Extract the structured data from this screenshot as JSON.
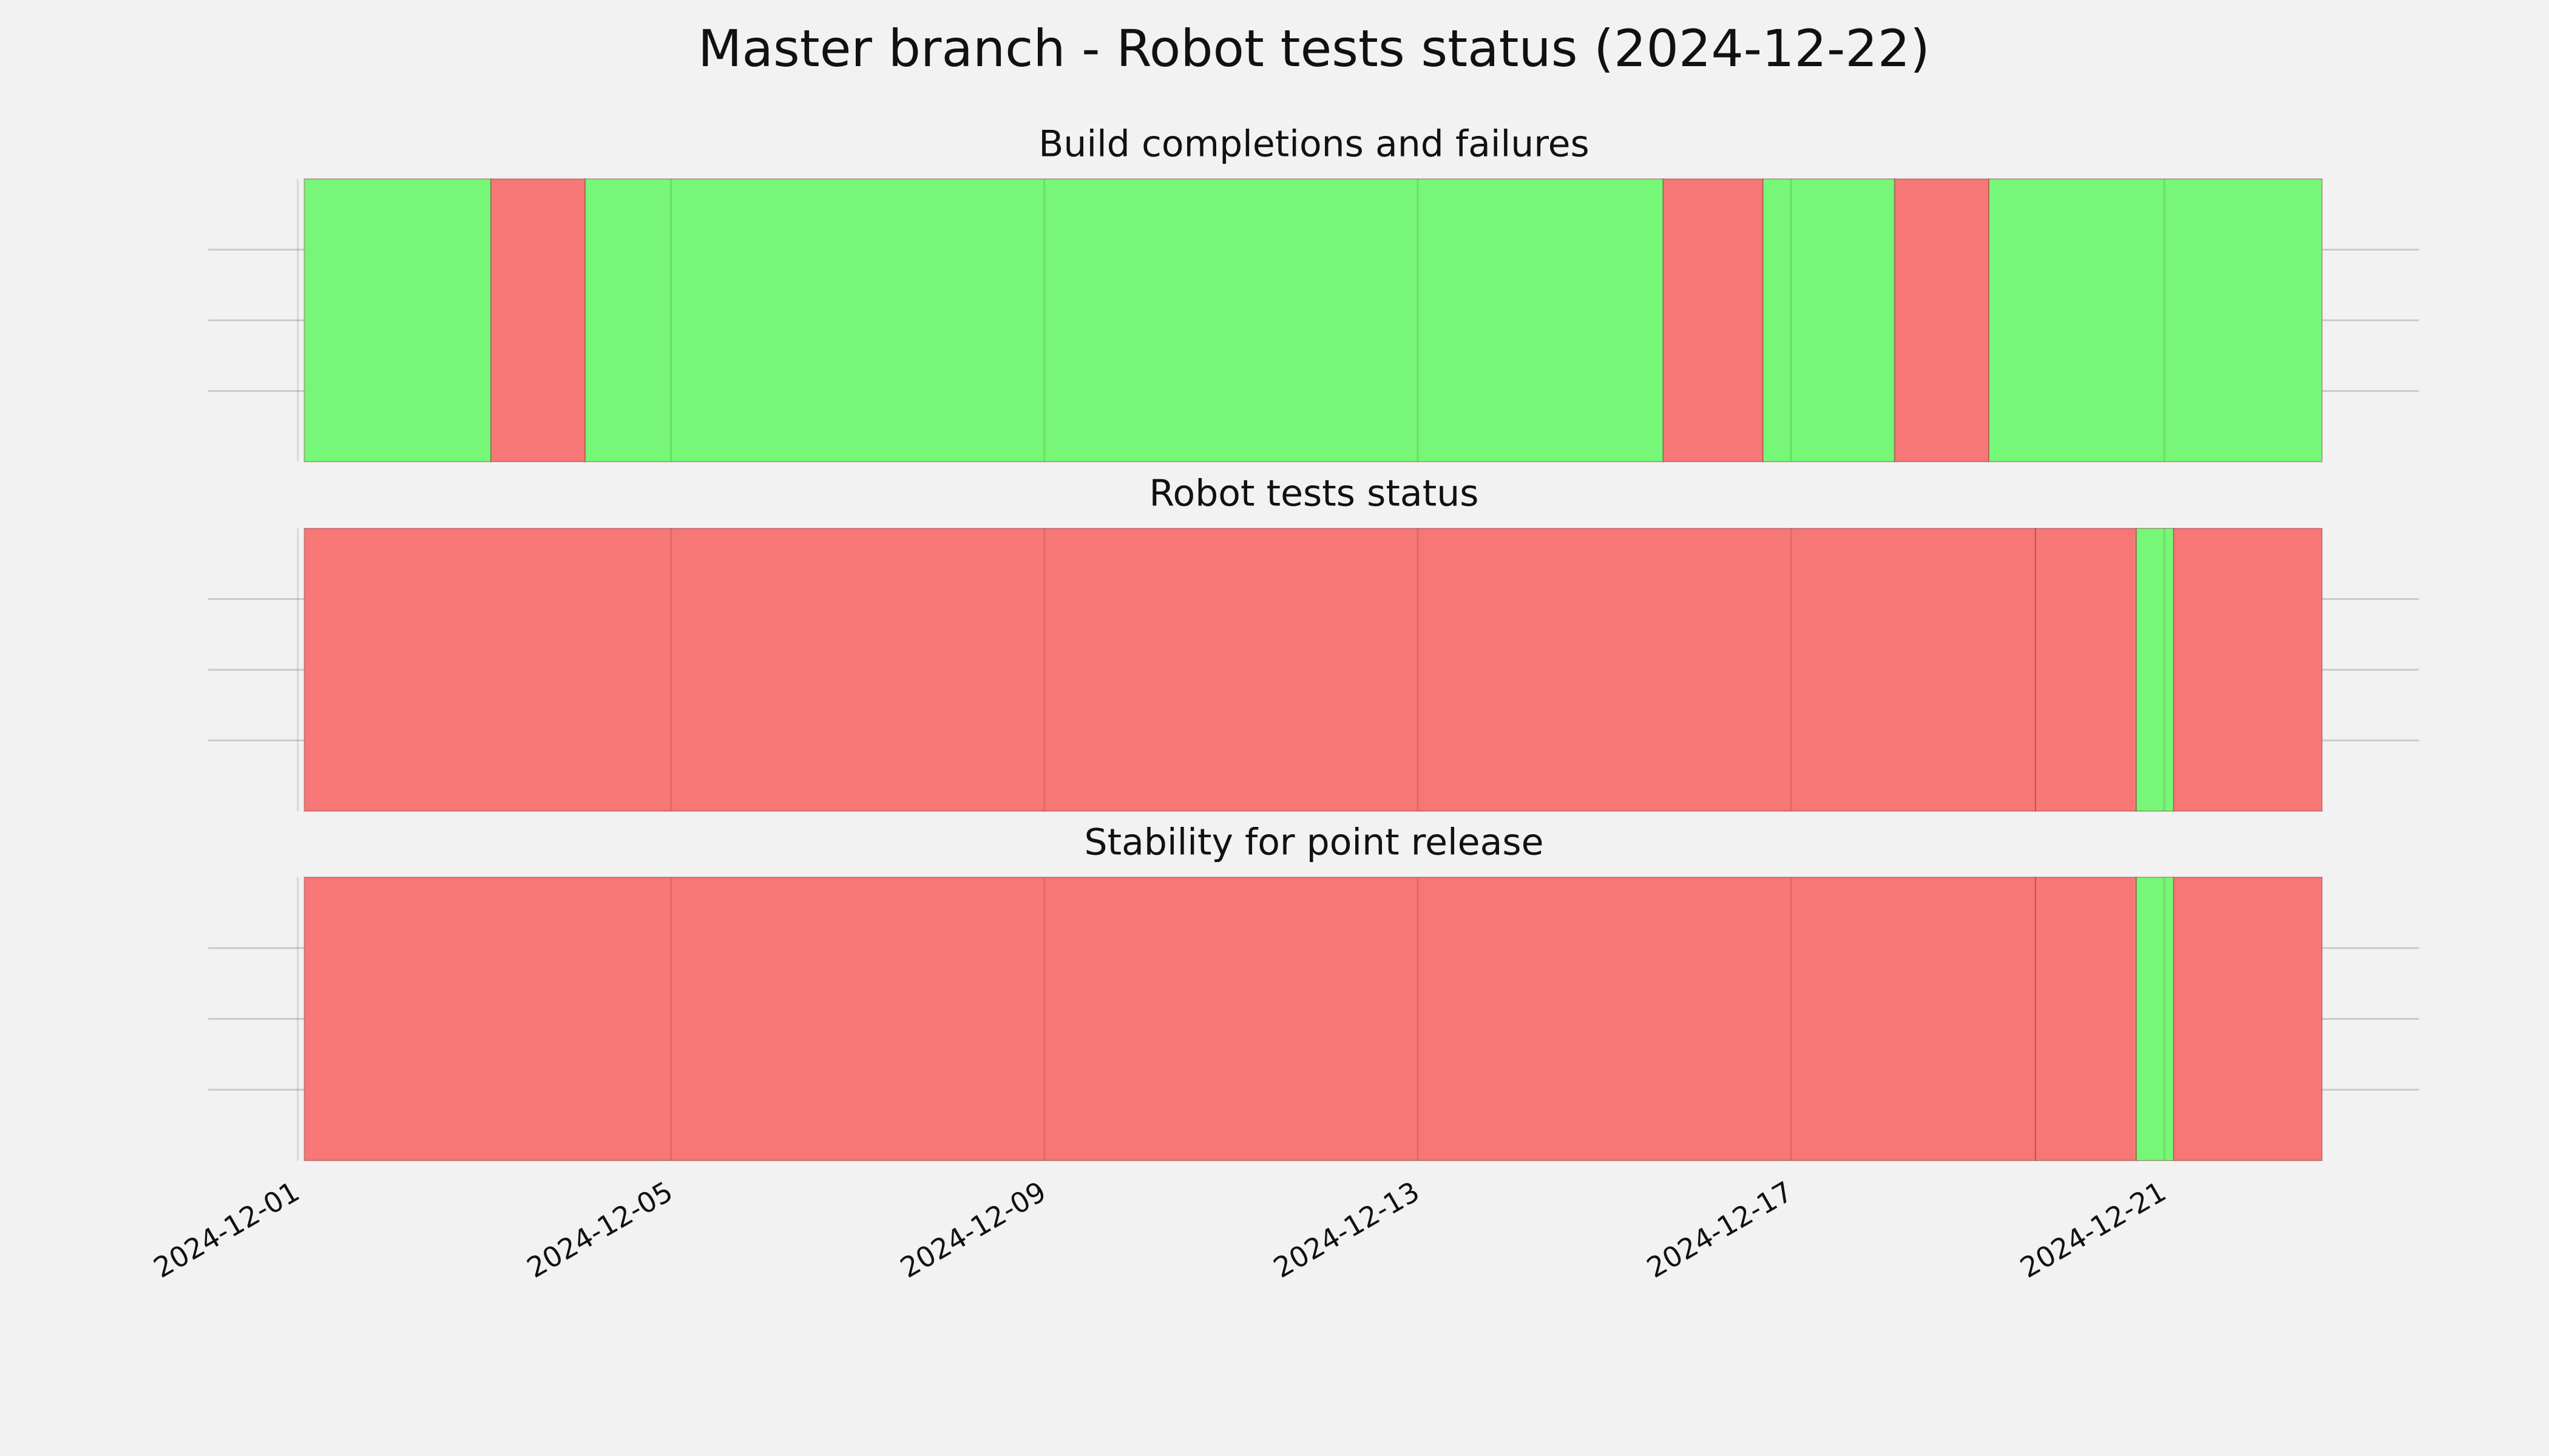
{
  "title": "Master branch - Robot tests status (2024-12-22)",
  "xaxis": {
    "xlim": [
      -0.96,
      22.73
    ],
    "xticks": [
      {
        "value": 0,
        "label": "2024-12-01"
      },
      {
        "value": 4,
        "label": "2024-12-05"
      },
      {
        "value": 8,
        "label": "2024-12-09"
      },
      {
        "value": 12,
        "label": "2024-12-13"
      },
      {
        "value": 16,
        "label": "2024-12-17"
      },
      {
        "value": 20,
        "label": "2024-12-21"
      }
    ]
  },
  "chart_data": [
    {
      "type": "timeline",
      "title": "Build completions and failures",
      "ylim": [
        0,
        1
      ],
      "yticks": [
        0.25,
        0.5,
        0.75
      ],
      "grid": true,
      "starts": [
        0.07,
        2.07,
        3.08,
        14.63,
        15.7,
        17.11,
        18.12
      ],
      "ends": [
        2.07,
        3.08,
        14.63,
        15.7,
        17.11,
        18.12,
        21.69
      ],
      "colors": [
        "#77f777",
        "#f77777",
        "#77f777",
        "#f77777",
        "#77f777",
        "#f77777",
        "#77f777"
      ]
    },
    {
      "type": "timeline",
      "title": "Robot tests status",
      "ylim": [
        0,
        1
      ],
      "yticks": [
        0.25,
        0.5,
        0.75
      ],
      "grid": true,
      "starts": [
        0.07,
        18.62,
        19.7,
        20.1
      ],
      "ends": [
        18.62,
        19.7,
        20.1,
        21.69
      ],
      "colors": [
        "#f77777",
        "#f77777",
        "#77f777",
        "#f77777"
      ]
    },
    {
      "type": "timeline",
      "title": "Stability for point release",
      "ylim": [
        0,
        1
      ],
      "yticks": [
        0.25,
        0.5,
        0.75
      ],
      "grid": true,
      "starts": [
        0.07,
        18.62,
        19.7,
        20.1
      ],
      "ends": [
        18.62,
        19.7,
        20.1,
        21.69
      ],
      "colors": [
        "#f77777",
        "#f77777",
        "#77f777",
        "#f77777"
      ]
    }
  ]
}
